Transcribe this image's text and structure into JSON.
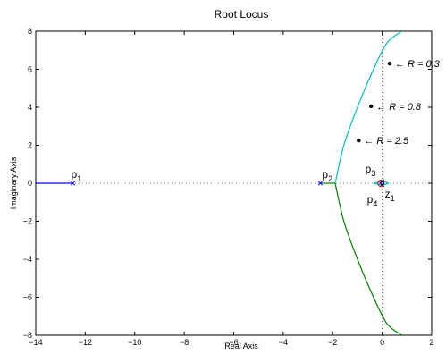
{
  "chart_data": {
    "type": "line",
    "title": "Root Locus",
    "xlabel": "Real Axis",
    "ylabel": "Imaginary Axis",
    "xlim": [
      -14,
      2
    ],
    "ylim": [
      -8,
      8
    ],
    "xticks": [
      -14,
      -12,
      -10,
      -8,
      -6,
      -4,
      -2,
      0,
      2
    ],
    "yticks": [
      -8,
      -6,
      -4,
      -2,
      0,
      2,
      4,
      6,
      8
    ],
    "tick_labels_x": [
      "−14",
      "−12",
      "−10",
      "−8",
      "−6",
      "−4",
      "−2",
      "0",
      "2"
    ],
    "tick_labels_y": [
      "−8",
      "−6",
      "−4",
      "−2",
      "0",
      "2",
      "4",
      "6",
      "8"
    ],
    "grid": false,
    "reference_lines": {
      "x0_dotted": true,
      "y0_dotted": true
    },
    "colors": {
      "blue": "#0000ff",
      "green": "#008000",
      "cyan": "#00bfbf",
      "red": "#ff0000"
    },
    "poles": [
      {
        "name": "p",
        "sub": "1",
        "x": -12.5,
        "y": 0
      },
      {
        "name": "p",
        "sub": "2",
        "x": -2.5,
        "y": 0
      },
      {
        "name": "p",
        "sub": "3",
        "x": 0.0,
        "y": 0.08
      },
      {
        "name": "p",
        "sub": "4",
        "x": 0.0,
        "y": -0.08
      }
    ],
    "zeros": [
      {
        "name": "z",
        "sub": "1",
        "x": -0.05,
        "y": 0
      }
    ],
    "series": [
      {
        "color": "blue",
        "x": [
          -14,
          -12.5
        ],
        "y": [
          0,
          0
        ]
      },
      {
        "color": "green",
        "x": [
          -2.5,
          -1.9
        ],
        "y": [
          0,
          0
        ]
      },
      {
        "color": "green",
        "x": [
          -1.9,
          -1.55,
          -1.0,
          -0.35,
          0.2,
          0.8
        ],
        "y": [
          0,
          -2.0,
          -4.0,
          -6.0,
          -7.4,
          -8.0
        ]
      },
      {
        "color": "cyan",
        "x": [
          -1.9,
          -1.55,
          -1.0,
          -0.35,
          0.2,
          0.8
        ],
        "y": [
          0,
          2.0,
          4.0,
          6.0,
          7.4,
          8.0
        ]
      },
      {
        "color": "cyan",
        "x": [
          -0.35,
          0.0,
          0.25,
          0.0,
          -0.35
        ],
        "y": [
          0,
          0.08,
          0,
          -0.08,
          0
        ]
      }
    ],
    "annotations": [
      {
        "text": "← R = 0.3",
        "x": 0.3,
        "y": 6.3
      },
      {
        "text": "← R = 0.8",
        "x": -0.45,
        "y": 4.05
      },
      {
        "text": "← R = 2.5",
        "x": -0.95,
        "y": 2.25
      }
    ]
  }
}
